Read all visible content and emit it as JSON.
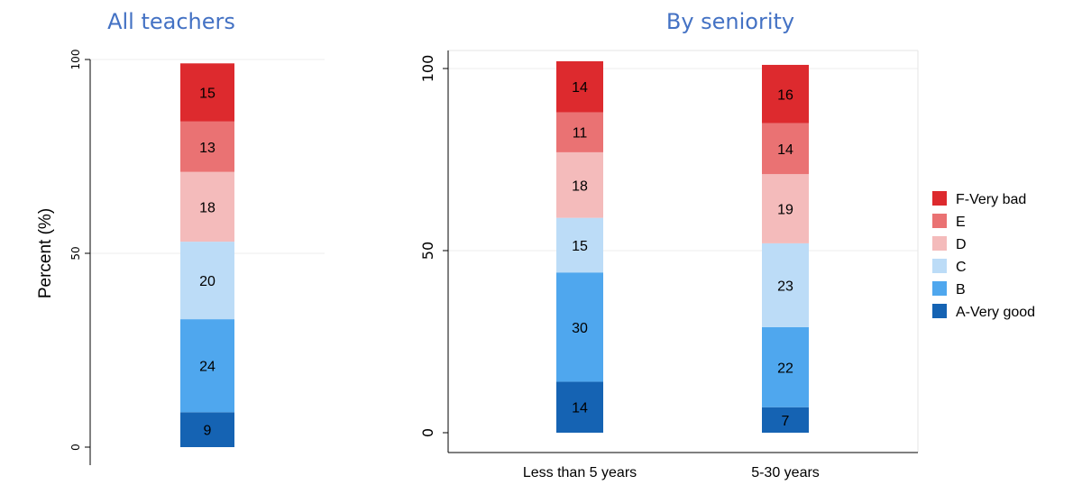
{
  "panel_titles": [
    "All teachers",
    "By seniority"
  ],
  "chart_data": [
    {
      "type": "bar",
      "stacked": true,
      "title": "All teachers",
      "ylabel": "Percent (%)",
      "xlabel": "",
      "ylim": [
        0,
        100
      ],
      "yticks": [
        0,
        50,
        100
      ],
      "grid": true,
      "categories": [
        ""
      ],
      "series": [
        {
          "name": "A-Very good",
          "values": [
            9
          ]
        },
        {
          "name": "B",
          "values": [
            24
          ]
        },
        {
          "name": "C",
          "values": [
            20
          ]
        },
        {
          "name": "D",
          "values": [
            18
          ]
        },
        {
          "name": "E",
          "values": [
            13
          ]
        },
        {
          "name": "F-Very bad",
          "values": [
            15
          ]
        }
      ]
    },
    {
      "type": "bar",
      "stacked": true,
      "title": "By seniority",
      "ylabel": "",
      "xlabel": "",
      "ylim": [
        0,
        100
      ],
      "yticks": [
        0,
        50,
        100
      ],
      "grid": true,
      "legend_position": "right",
      "categories": [
        "Less than 5 years",
        "5-30 years"
      ],
      "series": [
        {
          "name": "A-Very good",
          "values": [
            14,
            7
          ]
        },
        {
          "name": "B",
          "values": [
            30,
            22
          ]
        },
        {
          "name": "C",
          "values": [
            15,
            23
          ]
        },
        {
          "name": "D",
          "values": [
            18,
            19
          ]
        },
        {
          "name": "E",
          "values": [
            11,
            14
          ]
        },
        {
          "name": "F-Very bad",
          "values": [
            14,
            16
          ]
        }
      ]
    }
  ],
  "series_colors": {
    "A-Very good": "#1563b3",
    "B": "#4fa7ee",
    "C": "#bcdcf7",
    "D": "#f4bbbb",
    "E": "#ea7273",
    "F-Very bad": "#dd2a2e"
  },
  "legend": {
    "entries": [
      "F-Very bad",
      "E",
      "D",
      "C",
      "B",
      "A-Very good"
    ]
  }
}
